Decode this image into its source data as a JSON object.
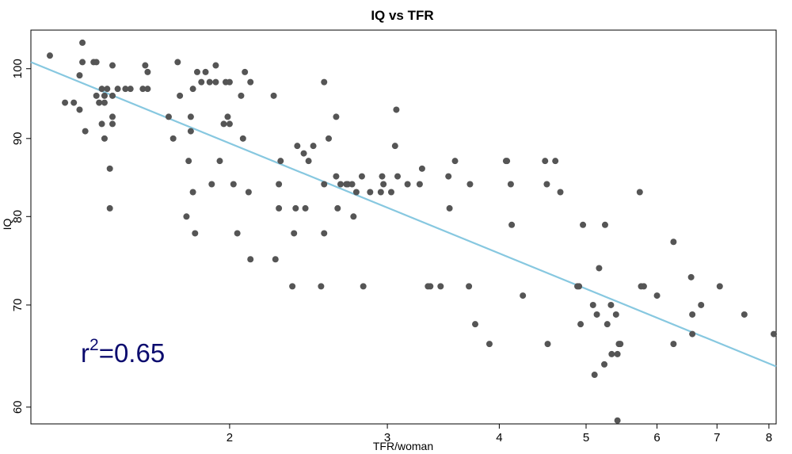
{
  "chart_data": {
    "type": "scatter",
    "title": "IQ vs TFR",
    "xlabel": "TFR/woman",
    "ylabel": "IQ",
    "x_scale": "log",
    "y_scale": "log",
    "xlim": [
      1.2,
      8.15
    ],
    "ylim": [
      58.5,
      106
    ],
    "x_ticks": [
      {
        "value": 2,
        "label": "2"
      },
      {
        "value": 3,
        "label": "3"
      },
      {
        "value": 4,
        "label": "4"
      },
      {
        "value": 5,
        "label": "5"
      },
      {
        "value": 6,
        "label": "6"
      },
      {
        "value": 7,
        "label": "7"
      },
      {
        "value": 8,
        "label": "8"
      }
    ],
    "y_ticks": [
      {
        "value": 60,
        "label": "60"
      },
      {
        "value": 70,
        "label": "70"
      },
      {
        "value": 80,
        "label": "80"
      },
      {
        "value": 90,
        "label": "90"
      },
      {
        "value": 100,
        "label": "100"
      }
    ],
    "annotation": {
      "base": "r",
      "sup": "2",
      "rest": "=0.65"
    },
    "colors": {
      "points": "#555555",
      "fit_line": "#87c8e0",
      "annotation": "#0b0b6e",
      "frame": "#000000"
    },
    "fit_line": {
      "x": [
        1.2,
        8.15
      ],
      "y": [
        101.0,
        63.8
      ]
    },
    "grid": false,
    "legend": "none",
    "points": [
      [
        1.26,
        102
      ],
      [
        1.31,
        95
      ],
      [
        1.34,
        95
      ],
      [
        1.36,
        99
      ],
      [
        1.36,
        94
      ],
      [
        1.37,
        104
      ],
      [
        1.37,
        101
      ],
      [
        1.38,
        91
      ],
      [
        1.41,
        101
      ],
      [
        1.42,
        101
      ],
      [
        1.42,
        96
      ],
      [
        1.43,
        95
      ],
      [
        1.44,
        92
      ],
      [
        1.44,
        97
      ],
      [
        1.45,
        96
      ],
      [
        1.45,
        95
      ],
      [
        1.45,
        90
      ],
      [
        1.46,
        97
      ],
      [
        1.47,
        86
      ],
      [
        1.47,
        81
      ],
      [
        1.48,
        96
      ],
      [
        1.48,
        93
      ],
      [
        1.48,
        92
      ],
      [
        1.48,
        100.5
      ],
      [
        1.5,
        97
      ],
      [
        1.53,
        97
      ],
      [
        1.55,
        97
      ],
      [
        1.6,
        97
      ],
      [
        1.61,
        100.5
      ],
      [
        1.62,
        99.5
      ],
      [
        1.62,
        97
      ],
      [
        1.71,
        93
      ],
      [
        1.73,
        90
      ],
      [
        1.75,
        101
      ],
      [
        1.76,
        96
      ],
      [
        1.79,
        80
      ],
      [
        1.8,
        87
      ],
      [
        1.81,
        93
      ],
      [
        1.81,
        91
      ],
      [
        1.82,
        83
      ],
      [
        1.82,
        97
      ],
      [
        1.83,
        78
      ],
      [
        1.84,
        99.5
      ],
      [
        1.86,
        98
      ],
      [
        1.88,
        99.5
      ],
      [
        1.9,
        98
      ],
      [
        1.91,
        84
      ],
      [
        1.93,
        98
      ],
      [
        1.93,
        100.5
      ],
      [
        1.95,
        87
      ],
      [
        1.97,
        92
      ],
      [
        1.98,
        98
      ],
      [
        1.99,
        93
      ],
      [
        2.0,
        92
      ],
      [
        2.0,
        98
      ],
      [
        2.02,
        84
      ],
      [
        2.04,
        78
      ],
      [
        2.06,
        96
      ],
      [
        2.07,
        90
      ],
      [
        2.08,
        99.5
      ],
      [
        2.1,
        83
      ],
      [
        2.11,
        98
      ],
      [
        2.11,
        75
      ],
      [
        2.24,
        96
      ],
      [
        2.25,
        75
      ],
      [
        2.27,
        84
      ],
      [
        2.27,
        81
      ],
      [
        2.28,
        87
      ],
      [
        2.35,
        72
      ],
      [
        2.36,
        78
      ],
      [
        2.37,
        81
      ],
      [
        2.38,
        89
      ],
      [
        2.42,
        88
      ],
      [
        2.43,
        81
      ],
      [
        2.45,
        87
      ],
      [
        2.48,
        89
      ],
      [
        2.53,
        72
      ],
      [
        2.55,
        78
      ],
      [
        2.55,
        84
      ],
      [
        2.55,
        98
      ],
      [
        2.58,
        90
      ],
      [
        2.63,
        85
      ],
      [
        2.63,
        93
      ],
      [
        2.64,
        81
      ],
      [
        2.66,
        84
      ],
      [
        2.7,
        84
      ],
      [
        2.71,
        84
      ],
      [
        2.74,
        84
      ],
      [
        2.75,
        80
      ],
      [
        2.77,
        83
      ],
      [
        2.81,
        85
      ],
      [
        2.82,
        72
      ],
      [
        2.87,
        83
      ],
      [
        2.95,
        83
      ],
      [
        2.96,
        85
      ],
      [
        2.97,
        84
      ],
      [
        3.03,
        83
      ],
      [
        3.06,
        89
      ],
      [
        3.07,
        94
      ],
      [
        3.08,
        85
      ],
      [
        3.16,
        84
      ],
      [
        3.26,
        84
      ],
      [
        3.28,
        86
      ],
      [
        3.33,
        72
      ],
      [
        3.35,
        72
      ],
      [
        3.44,
        72
      ],
      [
        3.51,
        85
      ],
      [
        3.52,
        81
      ],
      [
        3.57,
        87
      ],
      [
        3.7,
        72
      ],
      [
        3.71,
        84
      ],
      [
        3.76,
        68
      ],
      [
        3.9,
        66
      ],
      [
        4.07,
        87
      ],
      [
        4.08,
        87
      ],
      [
        4.12,
        84
      ],
      [
        4.13,
        79
      ],
      [
        4.25,
        71
      ],
      [
        4.5,
        87
      ],
      [
        4.52,
        84
      ],
      [
        4.53,
        66
      ],
      [
        4.62,
        87
      ],
      [
        4.68,
        83
      ],
      [
        4.89,
        72
      ],
      [
        4.91,
        72
      ],
      [
        4.93,
        68
      ],
      [
        4.96,
        79
      ],
      [
        5.09,
        70
      ],
      [
        5.11,
        63
      ],
      [
        5.14,
        69
      ],
      [
        5.17,
        74
      ],
      [
        5.24,
        64
      ],
      [
        5.25,
        79
      ],
      [
        5.28,
        68
      ],
      [
        5.33,
        70
      ],
      [
        5.34,
        65
      ],
      [
        5.4,
        69
      ],
      [
        5.42,
        65
      ],
      [
        5.42,
        58.8
      ],
      [
        5.44,
        66
      ],
      [
        5.46,
        66
      ],
      [
        5.74,
        83
      ],
      [
        5.76,
        72
      ],
      [
        5.8,
        72
      ],
      [
        6.0,
        71
      ],
      [
        6.26,
        77
      ],
      [
        6.26,
        66
      ],
      [
        6.55,
        73
      ],
      [
        6.57,
        69
      ],
      [
        6.57,
        67
      ],
      [
        6.72,
        70
      ],
      [
        7.05,
        72
      ],
      [
        7.51,
        69
      ],
      [
        8.1,
        67
      ]
    ]
  }
}
